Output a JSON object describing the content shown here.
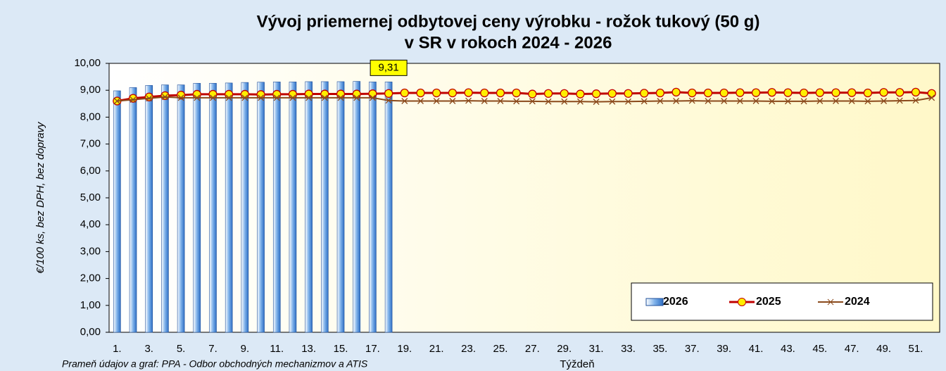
{
  "chart_data": {
    "type": "bar-line",
    "title": [
      "Vývoj priemernej odbytovej ceny výrobku - rožok tukový (50 g)",
      "v SR v rokoch 2024 - 2026"
    ],
    "y_label": "€/100 ks, bez DPH, bez dopravy",
    "x_label": "Týždeň",
    "source": "Prameň údajov a graf: PPA - Odbor obchodných mechanizmov a ATIS",
    "categories": [
      "1.",
      null,
      "3.",
      null,
      "5.",
      null,
      "7.",
      null,
      "9.",
      null,
      "11.",
      null,
      "13.",
      null,
      "15.",
      null,
      "17.",
      null,
      "19.",
      null,
      "21.",
      null,
      "23.",
      null,
      "25.",
      null,
      "27.",
      null,
      "29.",
      null,
      "31.",
      null,
      "33.",
      null,
      "35.",
      null,
      "37.",
      null,
      "39.",
      null,
      "41.",
      null,
      "43.",
      null,
      "45.",
      null,
      "47.",
      null,
      "49.",
      null,
      "51.",
      null
    ],
    "ylim": [
      0,
      10
    ],
    "yticks": [
      {
        "value": 0,
        "label": "0,00"
      },
      {
        "value": 1,
        "label": "1,00"
      },
      {
        "value": 2,
        "label": "2,00"
      },
      {
        "value": 3,
        "label": "3,00"
      },
      {
        "value": 4,
        "label": "4,00"
      },
      {
        "value": 5,
        "label": "5,00"
      },
      {
        "value": 6,
        "label": "6,00"
      },
      {
        "value": 7,
        "label": "7,00"
      },
      {
        "value": 8,
        "label": "8,00"
      },
      {
        "value": 9,
        "label": "9,00"
      },
      {
        "value": 10,
        "label": "10,00"
      }
    ],
    "grid": false,
    "legend": "lower right",
    "series": [
      {
        "name": "2026",
        "type": "bar",
        "color": "#4f8fdc",
        "values": [
          8.98,
          9.1,
          9.18,
          9.2,
          9.2,
          9.26,
          9.26,
          9.27,
          9.29,
          9.3,
          9.31,
          9.31,
          9.32,
          9.32,
          9.32,
          9.33,
          9.31,
          9.31,
          null,
          null,
          null,
          null,
          null,
          null,
          null,
          null,
          null,
          null,
          null,
          null,
          null,
          null,
          null,
          null,
          null,
          null,
          null,
          null,
          null,
          null,
          null,
          null,
          null,
          null,
          null,
          null,
          null,
          null,
          null,
          null,
          null,
          null
        ],
        "value_labels": [
          null,
          null,
          null,
          null,
          null,
          null,
          null,
          null,
          null,
          null,
          null,
          null,
          null,
          null,
          null,
          null,
          null,
          "9,31",
          null,
          null,
          null,
          null,
          null,
          null,
          null,
          null,
          null,
          null,
          null,
          null,
          null,
          null,
          null,
          null,
          null,
          null,
          null,
          null,
          null,
          null,
          null,
          null,
          null,
          null,
          null,
          null,
          null,
          null,
          null,
          null,
          null,
          null
        ]
      },
      {
        "name": "2025",
        "type": "line",
        "marker": "circle",
        "color": "#c00000",
        "marker_fill": "#ffee00",
        "values": [
          8.6,
          8.7,
          8.75,
          8.8,
          8.82,
          8.85,
          8.85,
          8.85,
          8.85,
          8.84,
          8.85,
          8.85,
          8.86,
          8.86,
          8.86,
          8.86,
          8.87,
          8.88,
          8.9,
          8.9,
          8.9,
          8.9,
          8.91,
          8.9,
          8.9,
          8.9,
          8.86,
          8.88,
          8.88,
          8.86,
          8.87,
          8.88,
          8.88,
          8.89,
          8.9,
          8.93,
          8.9,
          8.9,
          8.9,
          8.91,
          8.91,
          8.92,
          8.91,
          8.9,
          8.91,
          8.91,
          8.91,
          8.9,
          8.92,
          8.92,
          8.93,
          8.88
        ]
      },
      {
        "name": "2024",
        "type": "line",
        "marker": "x",
        "color": "#8b4a1c",
        "values": [
          8.6,
          8.65,
          8.7,
          8.75,
          8.72,
          8.72,
          8.72,
          8.72,
          8.72,
          8.72,
          8.72,
          8.72,
          8.72,
          8.72,
          8.72,
          8.72,
          8.72,
          8.62,
          8.6,
          8.6,
          8.6,
          8.6,
          8.61,
          8.6,
          8.6,
          8.59,
          8.59,
          8.58,
          8.58,
          8.58,
          8.57,
          8.58,
          8.58,
          8.59,
          8.6,
          8.6,
          8.61,
          8.6,
          8.6,
          8.6,
          8.6,
          8.59,
          8.59,
          8.59,
          8.6,
          8.6,
          8.6,
          8.59,
          8.6,
          8.61,
          8.62,
          8.72
        ]
      }
    ]
  }
}
